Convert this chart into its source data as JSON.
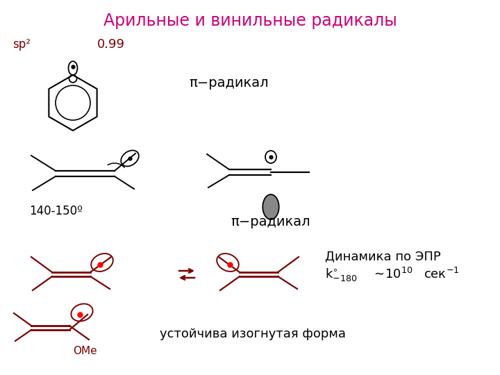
{
  "title": "Арильные и винильные радикалы",
  "title_color": "#cc0077",
  "title_fontsize": 17,
  "sp2_label": "sp²",
  "sp2_color": "#8b0000",
  "val_099": "0.99",
  "val_099_color": "#8b0000",
  "pi_radical_label": "π−радикал",
  "angle_label": "140-150º",
  "dynamics_line1": "Динамика по ЭПР",
  "stable_label": "устойчива изогнутая форма",
  "ome_label": "OMe",
  "dark_red": "#7a0000",
  "black": "#000000",
  "bg_color": "#ffffff"
}
